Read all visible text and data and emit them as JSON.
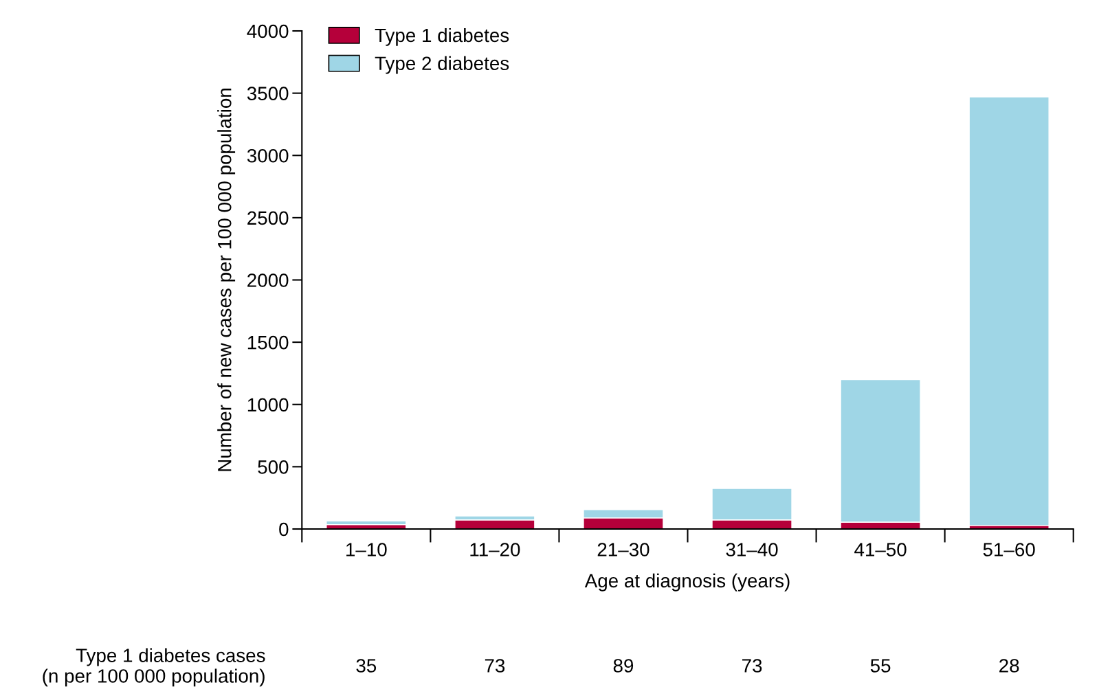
{
  "chart_data": {
    "type": "bar",
    "stacked": true,
    "xlabel": "Age at diagnosis (years)",
    "ylabel": "Number of new cases per 100 000 population",
    "categories": [
      "1–10",
      "11–20",
      "21–30",
      "31–40",
      "41–50",
      "51–60"
    ],
    "series": [
      {
        "name": "Type 1 diabetes",
        "color": "#b5003a",
        "values": [
          35,
          73,
          89,
          73,
          55,
          28
        ],
        "value_labels": [
          "35",
          "73",
          "89",
          "73",
          "55",
          "28"
        ]
      },
      {
        "name": "Type 2 diabetes",
        "color": "#9fd6e6",
        "values": [
          30,
          32,
          66,
          252,
          1145,
          3442
        ]
      }
    ],
    "ylim": [
      0,
      4000
    ],
    "yticks": [
      0,
      500,
      1000,
      1500,
      2000,
      2500,
      3000,
      3500,
      4000
    ],
    "legend": "top left",
    "grid": false,
    "annotations": [
      "Type 1 diabetes cases\n(n per 100 000 population)"
    ]
  }
}
